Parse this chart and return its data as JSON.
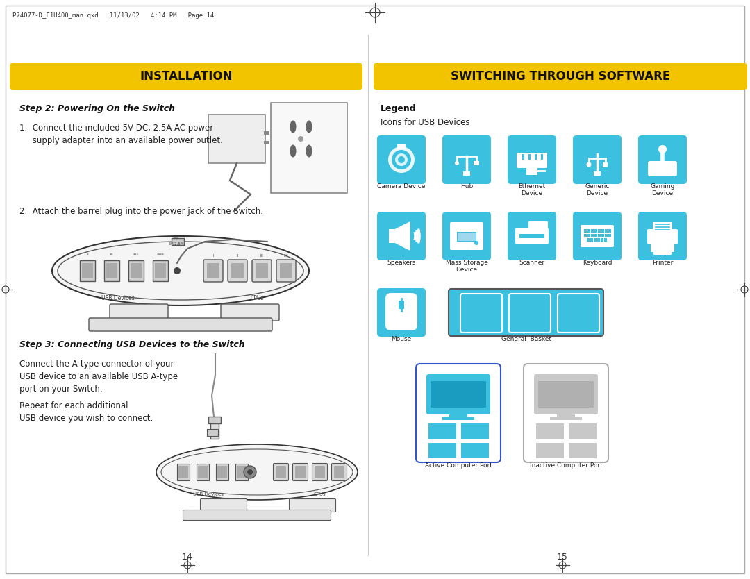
{
  "page_bg": "#ffffff",
  "header_bar_color": "#f2c400",
  "header_text_left": "INSTALLATION",
  "header_text_right": "SWITCHING THROUGH SOFTWARE",
  "header_text_color": "#111111",
  "step2_title": "Step 2: Powering On the Switch",
  "step2_line1": "1.  Connect the included 5V DC, 2.5A AC power",
  "step2_line2": "     supply adapter into an available power outlet.",
  "step2_text2": "2.  Attach the barrel plug into the power jack of the Switch.",
  "step3_title": "Step 3: Connecting USB Devices to the Switch",
  "step3_text1a": "Connect the A-type connector of your",
  "step3_text1b": "USB device to an available USB A-type",
  "step3_text1c": "port on your Switch.",
  "step3_text2a": "Repeat for each additional",
  "step3_text2b": "USB device you wish to connect.",
  "legend_title": "Legend",
  "legend_subtitle": "Icons for USB Devices",
  "icons_row1": [
    "Camera Device",
    "Hub",
    "Ethernet\nDevice",
    "Generic\nDevice",
    "Gaming\nDevice"
  ],
  "icons_row2": [
    "Speakers",
    "Mass Storage\nDevice",
    "Scanner",
    "Keyboard",
    "Printer"
  ],
  "icons_row3_left": "Mouse",
  "icons_row3_right": "General  Basket",
  "icons_row4_left": "Active Computer Port",
  "icons_row4_right": "Inactive Computer Port",
  "icon_bg_color": "#3bc0e0",
  "page_num_left": "14",
  "page_num_right": "15",
  "header_file": "P74077-D_F1U400_man.qxd   11/13/02   4:14 PM   Page 14"
}
